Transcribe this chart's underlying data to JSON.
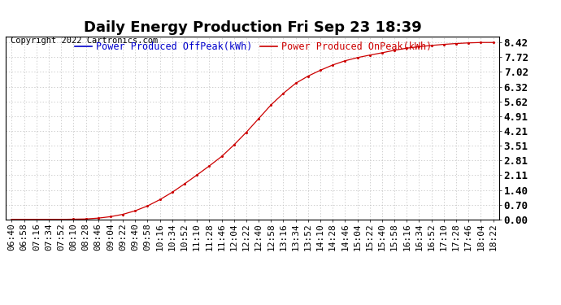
{
  "title": "Daily Energy Production Fri Sep 23 18:39",
  "copyright_text": "Copyright 2022 Cartronics.com",
  "legend_offpeak": "Power Produced OffPeak(kWh)",
  "legend_onpeak": "Power Produced OnPeak(kWh)",
  "offpeak_color": "#0000cc",
  "onpeak_color": "#cc0000",
  "bg_color": "#ffffff",
  "plot_bg_color": "#ffffff",
  "grid_color": "#bbbbbb",
  "yticks": [
    0.0,
    0.7,
    1.4,
    2.11,
    2.81,
    3.51,
    4.21,
    4.91,
    5.62,
    6.32,
    7.02,
    7.72,
    8.42
  ],
  "ylim": [
    0.0,
    8.7
  ],
  "x_labels": [
    "06:40",
    "06:58",
    "07:16",
    "07:34",
    "07:52",
    "08:10",
    "08:28",
    "08:46",
    "09:04",
    "09:22",
    "09:40",
    "09:58",
    "10:16",
    "10:34",
    "10:52",
    "11:10",
    "11:28",
    "11:46",
    "12:04",
    "12:22",
    "12:40",
    "12:58",
    "13:16",
    "13:34",
    "13:52",
    "14:10",
    "14:28",
    "14:46",
    "15:04",
    "15:22",
    "15:40",
    "15:58",
    "16:16",
    "16:34",
    "16:52",
    "17:10",
    "17:28",
    "17:46",
    "18:04",
    "18:22"
  ],
  "onpeak_y": [
    0.01,
    0.01,
    0.01,
    0.01,
    0.01,
    0.02,
    0.03,
    0.07,
    0.14,
    0.25,
    0.42,
    0.65,
    0.95,
    1.3,
    1.7,
    2.12,
    2.55,
    3.0,
    3.55,
    4.15,
    4.8,
    5.45,
    6.0,
    6.48,
    6.82,
    7.1,
    7.35,
    7.55,
    7.7,
    7.82,
    7.93,
    8.05,
    8.15,
    8.22,
    8.28,
    8.33,
    8.37,
    8.4,
    8.42,
    8.42
  ],
  "title_fontsize": 13,
  "tick_fontsize": 8,
  "legend_fontsize": 8.5,
  "copyright_fontsize": 7.5
}
